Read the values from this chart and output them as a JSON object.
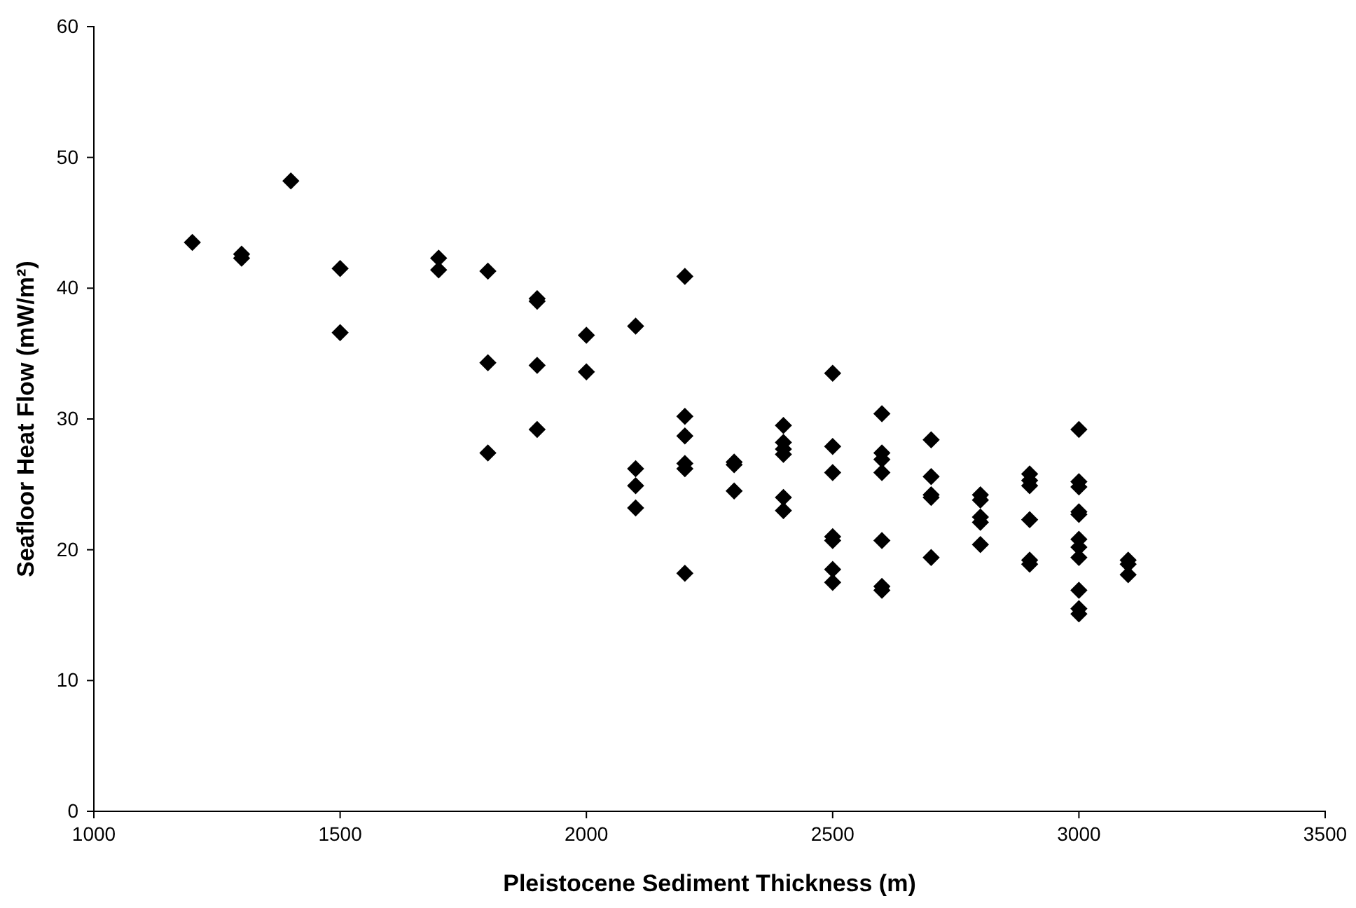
{
  "chart_data": {
    "type": "scatter",
    "xlabel": "Pleistocene Sediment Thickness (m)",
    "ylabel": "Seafloor Heat Flow (mW/m²)",
    "xlim": [
      1000,
      3500
    ],
    "xticks": [
      1000,
      1500,
      2000,
      2500,
      3000,
      3500
    ],
    "ylim": [
      0,
      60
    ],
    "yticks": [
      0,
      10,
      20,
      30,
      40,
      50,
      60
    ],
    "grid": false,
    "marker": "diamond",
    "series": [
      {
        "color": "#000000",
        "x": [
          1200,
          1300,
          1300,
          1400,
          1500,
          1500,
          1700,
          1700,
          1800,
          1800,
          1800,
          1900,
          1900,
          1900,
          1900,
          2000,
          2000,
          2100,
          2100,
          2100,
          2100,
          2200,
          2200,
          2200,
          2200,
          2200,
          2200,
          2300,
          2300,
          2300,
          2400,
          2400,
          2400,
          2400,
          2400,
          2400,
          2500,
          2500,
          2500,
          2500,
          2500,
          2500,
          2500,
          2600,
          2600,
          2600,
          2600,
          2600,
          2600,
          2600,
          2700,
          2700,
          2700,
          2700,
          2700,
          2800,
          2800,
          2800,
          2800,
          2800,
          2900,
          2900,
          2900,
          2900,
          2900,
          2900,
          3000,
          3000,
          3000,
          3000,
          3000,
          3000,
          3000,
          3000,
          3000,
          3000,
          3000,
          3100,
          3100,
          3100
        ],
        "values": [
          43.5,
          42.6,
          42.3,
          48.2,
          41.5,
          36.6,
          42.3,
          41.4,
          41.3,
          34.3,
          27.4,
          39.2,
          39.0,
          34.1,
          29.2,
          36.4,
          33.6,
          37.1,
          26.2,
          24.9,
          23.2,
          40.9,
          30.2,
          28.7,
          26.6,
          26.2,
          18.2,
          26.7,
          26.5,
          24.5,
          29.5,
          28.2,
          27.7,
          27.3,
          24.0,
          23.0,
          33.5,
          27.9,
          25.9,
          21.0,
          20.7,
          18.5,
          17.5,
          30.4,
          27.4,
          26.9,
          25.9,
          20.7,
          17.2,
          16.9,
          28.4,
          25.6,
          24.2,
          24.0,
          19.4,
          24.2,
          23.8,
          22.5,
          22.1,
          20.4,
          25.8,
          25.3,
          24.9,
          22.3,
          19.2,
          18.9,
          29.2,
          25.2,
          24.8,
          22.9,
          22.7,
          20.8,
          20.2,
          19.4,
          16.9,
          15.5,
          15.1,
          19.2,
          18.9,
          18.1
        ]
      }
    ]
  }
}
